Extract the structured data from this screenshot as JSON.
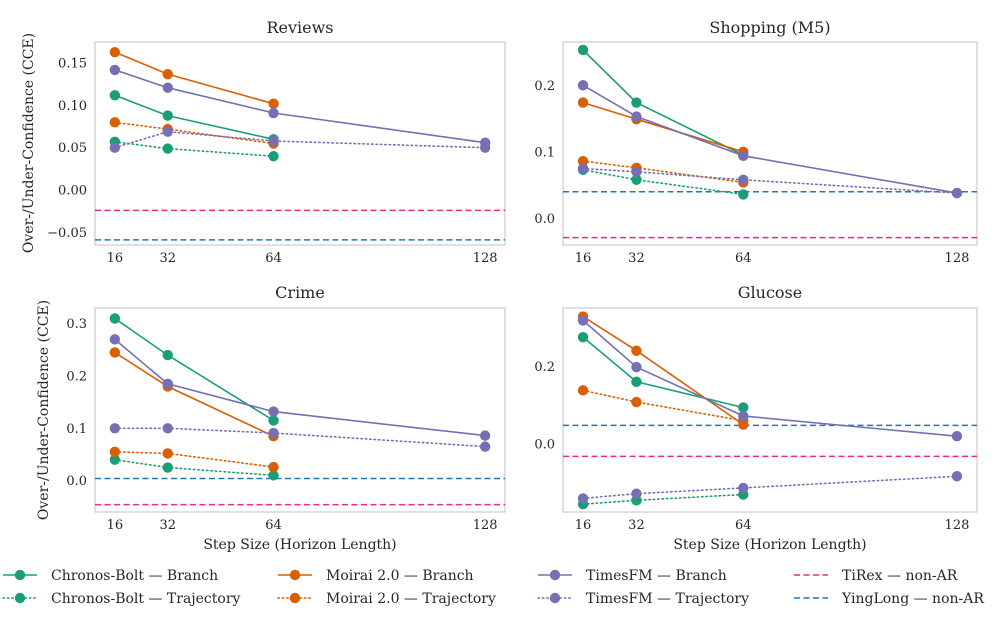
{
  "chart_data": {
    "type": "line",
    "xlabel": "Step Size (Horizon Length)",
    "ylabel": "Over-/Under-Confidence (CCE)",
    "x": [
      16,
      32,
      64,
      128
    ],
    "x_tick_labels": [
      "16",
      "32",
      "64",
      "128"
    ],
    "grid": false,
    "legend_placement": "bottom",
    "styles": {
      "Chronos-Bolt — Branch": {
        "color": "#1b9e77",
        "dash": "solid",
        "marker": true
      },
      "Chronos-Bolt — Trajectory": {
        "color": "#1b9e77",
        "dash": "dotted",
        "marker": true
      },
      "Moirai 2.0 — Branch": {
        "color": "#d95f02",
        "dash": "solid",
        "marker": true
      },
      "Moirai 2.0 — Trajectory": {
        "color": "#d95f02",
        "dash": "dotted",
        "marker": true
      },
      "TimesFM — Branch": {
        "color": "#7570b3",
        "dash": "solid",
        "marker": true
      },
      "TimesFM — Trajectory": {
        "color": "#7570b3",
        "dash": "dotted",
        "marker": true
      },
      "TiRex — non-AR": {
        "color": "#e7298a",
        "dash": "dashed",
        "marker": false
      },
      "YingLong — non-AR": {
        "color": "#1f78b4",
        "dash": "dashed",
        "marker": false
      }
    },
    "legend": [
      "Chronos-Bolt — Branch",
      "Moirai 2.0 — Branch",
      "TimesFM — Branch",
      "TiRex — non-AR",
      "Chronos-Bolt — Trajectory",
      "Moirai 2.0 — Trajectory",
      "TimesFM — Trajectory",
      "YingLong — non-AR"
    ],
    "panels": [
      {
        "title": "Reviews",
        "xlim": [
          10,
          134
        ],
        "ylim": [
          -0.065,
          0.175
        ],
        "yticks": [
          -0.05,
          0.0,
          0.05,
          0.1,
          0.15
        ],
        "ytick_labels": [
          "−0.05",
          "0.00",
          "0.05",
          "0.10",
          "0.15"
        ],
        "series": [
          {
            "name": "Chronos-Bolt — Branch",
            "x": [
              16,
              32,
              64
            ],
            "y": [
              0.112,
              0.088,
              0.06
            ]
          },
          {
            "name": "Chronos-Bolt — Trajectory",
            "x": [
              16,
              32,
              64
            ],
            "y": [
              0.057,
              0.049,
              0.04
            ]
          },
          {
            "name": "Moirai 2.0 — Branch",
            "x": [
              16,
              32,
              64
            ],
            "y": [
              0.163,
              0.137,
              0.102
            ]
          },
          {
            "name": "Moirai 2.0 — Trajectory",
            "x": [
              16,
              32,
              64
            ],
            "y": [
              0.08,
              0.072,
              0.055
            ]
          },
          {
            "name": "TimesFM — Branch",
            "x": [
              16,
              32,
              64,
              128
            ],
            "y": [
              0.142,
              0.121,
              0.091,
              0.056
            ]
          },
          {
            "name": "TimesFM — Trajectory",
            "x": [
              16,
              32,
              64,
              128
            ],
            "y": [
              0.05,
              0.069,
              0.058,
              0.05
            ]
          },
          {
            "name": "TiRex — non-AR",
            "hline": -0.024
          },
          {
            "name": "YingLong — non-AR",
            "hline": -0.059
          }
        ]
      },
      {
        "title": "Shopping (M5)",
        "xlim": [
          10,
          134
        ],
        "ylim": [
          -0.04,
          0.265
        ],
        "yticks": [
          0.0,
          0.1,
          0.2
        ],
        "ytick_labels": [
          "0.0",
          "0.1",
          "0.2"
        ],
        "series": [
          {
            "name": "Chronos-Bolt — Branch",
            "x": [
              16,
              32,
              64
            ],
            "y": [
              0.253,
              0.174,
              0.095
            ]
          },
          {
            "name": "Chronos-Bolt — Trajectory",
            "x": [
              16,
              32,
              64
            ],
            "y": [
              0.073,
              0.058,
              0.036
            ]
          },
          {
            "name": "Moirai 2.0 — Branch",
            "x": [
              16,
              32,
              64
            ],
            "y": [
              0.174,
              0.149,
              0.1
            ]
          },
          {
            "name": "Moirai 2.0 — Trajectory",
            "x": [
              16,
              32,
              64
            ],
            "y": [
              0.086,
              0.076,
              0.054
            ]
          },
          {
            "name": "TimesFM — Branch",
            "x": [
              16,
              32,
              64,
              128
            ],
            "y": [
              0.2,
              0.153,
              0.094,
              0.038
            ]
          },
          {
            "name": "TimesFM — Trajectory",
            "x": [
              16,
              32,
              64,
              128
            ],
            "y": [
              0.075,
              0.07,
              0.058,
              0.038
            ]
          },
          {
            "name": "TiRex — non-AR",
            "hline": -0.029
          },
          {
            "name": "YingLong — non-AR",
            "hline": 0.04
          }
        ]
      },
      {
        "title": "Crime",
        "xlim": [
          10,
          134
        ],
        "ylim": [
          -0.06,
          0.33
        ],
        "yticks": [
          0.0,
          0.1,
          0.2,
          0.3
        ],
        "ytick_labels": [
          "0.0",
          "0.1",
          "0.2",
          "0.3"
        ],
        "series": [
          {
            "name": "Chronos-Bolt — Branch",
            "x": [
              16,
              32,
              64
            ],
            "y": [
              0.31,
              0.24,
              0.115
            ]
          },
          {
            "name": "Chronos-Bolt — Trajectory",
            "x": [
              16,
              32,
              64
            ],
            "y": [
              0.04,
              0.025,
              0.01
            ]
          },
          {
            "name": "Moirai 2.0 — Branch",
            "x": [
              16,
              32,
              64
            ],
            "y": [
              0.245,
              0.18,
              0.085
            ]
          },
          {
            "name": "Moirai 2.0 — Trajectory",
            "x": [
              16,
              32,
              64
            ],
            "y": [
              0.055,
              0.052,
              0.026
            ]
          },
          {
            "name": "TimesFM — Branch",
            "x": [
              16,
              32,
              64,
              128
            ],
            "y": [
              0.27,
              0.185,
              0.132,
              0.086
            ]
          },
          {
            "name": "TimesFM — Trajectory",
            "x": [
              16,
              32,
              64,
              128
            ],
            "y": [
              0.1,
              0.1,
              0.091,
              0.065
            ]
          },
          {
            "name": "TiRex — non-AR",
            "hline": -0.046
          },
          {
            "name": "YingLong — non-AR",
            "hline": 0.004
          }
        ]
      },
      {
        "title": "Glucose",
        "xlim": [
          10,
          134
        ],
        "ylim": [
          -0.175,
          0.35
        ],
        "yticks": [
          0.0,
          0.2
        ],
        "ytick_labels": [
          "0.0",
          "0.2"
        ],
        "series": [
          {
            "name": "Chronos-Bolt — Branch",
            "x": [
              16,
              32,
              64
            ],
            "y": [
              0.275,
              0.16,
              0.094
            ]
          },
          {
            "name": "Chronos-Bolt — Trajectory",
            "x": [
              16,
              32,
              64
            ],
            "y": [
              -0.155,
              -0.145,
              -0.13
            ]
          },
          {
            "name": "Moirai 2.0 — Branch",
            "x": [
              16,
              32,
              64
            ],
            "y": [
              0.328,
              0.24,
              0.05
            ]
          },
          {
            "name": "Moirai 2.0 — Trajectory",
            "x": [
              16,
              32,
              64
            ],
            "y": [
              0.138,
              0.108,
              0.06
            ]
          },
          {
            "name": "TimesFM — Branch",
            "x": [
              16,
              32,
              64,
              128
            ],
            "y": [
              0.318,
              0.198,
              0.072,
              0.02
            ]
          },
          {
            "name": "TimesFM — Trajectory",
            "x": [
              16,
              32,
              64,
              128
            ],
            "y": [
              -0.14,
              -0.128,
              -0.113,
              -0.083
            ]
          },
          {
            "name": "TiRex — non-AR",
            "hline": -0.032
          },
          {
            "name": "YingLong — non-AR",
            "hline": 0.048
          }
        ]
      }
    ]
  }
}
